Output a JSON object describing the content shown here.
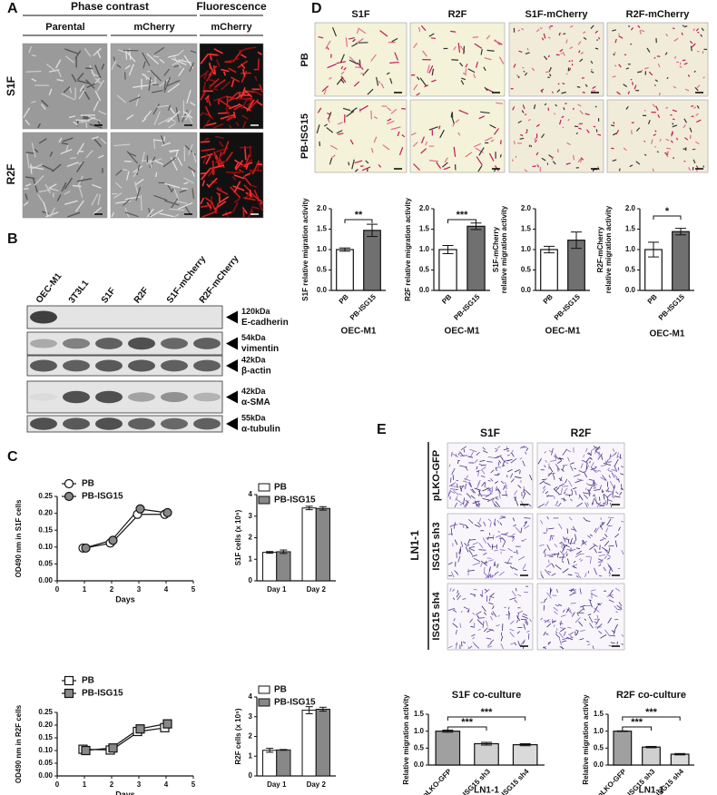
{
  "panel_a": {
    "label": "A",
    "headers": [
      "Phase contrast",
      "Fluorescence"
    ],
    "columns": [
      "Parental",
      "mCherry",
      "mCherry"
    ],
    "rows": [
      "S1F",
      "R2F"
    ]
  },
  "panel_b": {
    "label": "B",
    "lanes": [
      "OEC-M1",
      "3T3L1",
      "S1F",
      "R2F",
      "S1F-mCherry",
      "R2F-mCherry"
    ],
    "bands": [
      {
        "size": "120kDa",
        "name": "E-cadherin"
      },
      {
        "size": "54kDa",
        "name": "vimentin"
      },
      {
        "size": "42kDa",
        "name": "β-actin"
      },
      {
        "size": "42kDa",
        "name": "α-SMA"
      },
      {
        "size": "55kDa",
        "name": "α-tubulin"
      }
    ]
  },
  "panel_c": {
    "label": "C"
  },
  "panel_d": {
    "label": "D",
    "columns": [
      "S1F",
      "R2F",
      "S1F-mCherry",
      "R2F-mCherry"
    ],
    "rows": [
      "PB",
      "PB-ISG15"
    ]
  },
  "panel_e": {
    "label": "E",
    "columns": [
      "S1F",
      "R2F"
    ],
    "rows": [
      "pLKO-GFP",
      "ISG15 sh3",
      "ISG15 sh4"
    ],
    "group": "LN1-1"
  },
  "chart_data": [
    {
      "type": "line",
      "ylabel": "OD490 nm in S1F cells",
      "xlabel": "Days",
      "x": [
        1,
        2,
        3,
        4
      ],
      "xlim": [
        0,
        5
      ],
      "xticks": [
        0,
        1,
        2,
        3,
        4,
        5
      ],
      "ylim": [
        0,
        0.25
      ],
      "yticks": [
        {
          "value": 0,
          "label": "0.00"
        },
        0.05,
        {
          "value": 0.1,
          "label": "0.10"
        },
        0.15,
        {
          "value": 0.2,
          "label": "0.20"
        },
        0.25
      ],
      "series": [
        {
          "name": "PB",
          "marker": "circle",
          "color": "#ffffff",
          "values": [
            0.097,
            0.112,
            0.197,
            0.197
          ],
          "errors": [
            0.002,
            0.003,
            0.004,
            0.004
          ]
        },
        {
          "name": "PB-ISG15",
          "marker": "circle",
          "color": "#888888",
          "values": [
            0.097,
            0.12,
            0.213,
            0.202
          ],
          "errors": [
            0.002,
            0.003,
            0.004,
            0.004
          ]
        }
      ]
    },
    {
      "type": "bar",
      "ylabel": "S1F cells (x 10⁵)",
      "categories": [
        "Day 1",
        "Day 2"
      ],
      "ylim": [
        0,
        4
      ],
      "yticks": [
        0,
        1,
        2,
        3,
        4
      ],
      "series": [
        {
          "name": "PB",
          "color": "#ffffff",
          "values": [
            1.32,
            3.38
          ],
          "errors": [
            0.04,
            0.08
          ]
        },
        {
          "name": "PB-ISG15",
          "color": "#888888",
          "values": [
            1.35,
            3.36
          ],
          "errors": [
            0.08,
            0.08
          ]
        }
      ]
    },
    {
      "type": "line",
      "ylabel": "OD490 nm in R2F cells",
      "xlabel": "Days",
      "x": [
        1,
        2,
        3,
        4
      ],
      "xlim": [
        0,
        5
      ],
      "xticks": [
        0,
        1,
        2,
        3,
        4,
        5
      ],
      "ylim": [
        0,
        0.25
      ],
      "yticks": [
        {
          "value": 0,
          "label": "0.00"
        },
        0.05,
        {
          "value": 0.1,
          "label": "0.10"
        },
        0.15,
        {
          "value": 0.2,
          "label": "0.20"
        },
        0.25
      ],
      "series": [
        {
          "name": "PB",
          "marker": "square",
          "color": "#ffffff",
          "values": [
            0.105,
            0.102,
            0.175,
            0.19
          ],
          "errors": [
            0.008,
            0.01,
            0.01,
            0.01
          ]
        },
        {
          "name": "PB-ISG15",
          "marker": "square",
          "color": "#888888",
          "values": [
            0.1,
            0.11,
            0.185,
            0.205
          ],
          "errors": [
            0.005,
            0.01,
            0.01,
            0.008
          ]
        }
      ]
    },
    {
      "type": "bar",
      "ylabel": "R2F cells (x 10⁵)",
      "categories": [
        "Day 1",
        "Day 2"
      ],
      "ylim": [
        0,
        4
      ],
      "yticks": [
        0,
        1,
        2,
        3,
        4
      ],
      "series": [
        {
          "name": "PB",
          "color": "#ffffff",
          "values": [
            1.3,
            3.33
          ],
          "errors": [
            0.1,
            0.18
          ]
        },
        {
          "name": "PB-ISG15",
          "color": "#888888",
          "values": [
            1.32,
            3.38
          ],
          "errors": [
            0.02,
            0.1
          ]
        }
      ]
    },
    {
      "type": "bar",
      "ylabel": "S1F relative migration activity",
      "xlabel": "OEC-M1",
      "categories": [
        "PB",
        "PB-ISG15"
      ],
      "colors": [
        "#ffffff",
        "#707070"
      ],
      "values": [
        1.0,
        1.47
      ],
      "errors": [
        0.04,
        0.15
      ],
      "ylim": [
        0,
        2
      ],
      "yticks": [
        {
          "value": 0,
          "label": "0.0"
        },
        0.5,
        {
          "value": 1,
          "label": "1.0"
        },
        1.5,
        {
          "value": 2,
          "label": "2.0"
        }
      ],
      "annotations": [
        "**"
      ]
    },
    {
      "type": "bar",
      "ylabel": "R2F relative migration activity",
      "xlabel": "OEC-M1",
      "categories": [
        "PB",
        "PB-ISG15"
      ],
      "colors": [
        "#ffffff",
        "#707070"
      ],
      "values": [
        1.0,
        1.57
      ],
      "errors": [
        0.1,
        0.08
      ],
      "ylim": [
        0,
        2
      ],
      "yticks": [
        {
          "value": 0,
          "label": "0.0"
        },
        0.5,
        {
          "value": 1,
          "label": "1.0"
        },
        1.5,
        {
          "value": 2,
          "label": "2.0"
        }
      ],
      "annotations": [
        "***"
      ]
    },
    {
      "type": "bar",
      "ylabel": [
        "S1F-mCherry",
        "relative migration activity"
      ],
      "xlabel": "OEC-M1",
      "categories": [
        "PB",
        "PB-ISG15"
      ],
      "colors": [
        "#ffffff",
        "#707070"
      ],
      "values": [
        1.0,
        1.23
      ],
      "errors": [
        0.08,
        0.2
      ],
      "ylim": [
        0,
        2
      ],
      "yticks": [
        {
          "value": 0,
          "label": "0.0"
        },
        0.5,
        {
          "value": 1,
          "label": "1.0"
        },
        1.5,
        {
          "value": 2,
          "label": "2.0"
        }
      ]
    },
    {
      "type": "bar",
      "ylabel": [
        "R2F-mCherry",
        "relative migration activity"
      ],
      "xlabel": "OEC-M1",
      "categories": [
        "PB",
        "PB-ISG15"
      ],
      "colors": [
        "#ffffff",
        "#707070"
      ],
      "values": [
        1.0,
        1.44
      ],
      "errors": [
        0.18,
        0.08
      ],
      "ylim": [
        0,
        2
      ],
      "yticks": [
        {
          "value": 0,
          "label": "0.0"
        },
        0.5,
        {
          "value": 1,
          "label": "1.0"
        },
        1.5,
        {
          "value": 2,
          "label": "2.0"
        }
      ],
      "annotations": [
        "*"
      ]
    },
    {
      "type": "bar",
      "title": "S1F co-culture",
      "ylabel": "Relative migration activity",
      "xlabel": "LN1-1",
      "categories": [
        "pLKO-GFP",
        "ISG15 sh3",
        "ISG15 sh4"
      ],
      "colors": [
        "#a0a0a0",
        "#d0d0d0",
        "#dadada"
      ],
      "values": [
        1.0,
        0.63,
        0.6
      ],
      "errors": [
        0.03,
        0.04,
        0.03
      ],
      "ylim": [
        0,
        1.5
      ],
      "yticks": [
        {
          "value": 0,
          "label": "0.0"
        },
        0.5,
        {
          "value": 1,
          "label": "1.0"
        },
        1.5
      ],
      "annotations": [
        "***",
        "***"
      ]
    },
    {
      "type": "bar",
      "title": "R2F co-culture",
      "ylabel": "Relative migration activity",
      "xlabel": "LN1-1",
      "categories": [
        "pLKO-GFP",
        "ISG15 sh3",
        "ISG15 sh4"
      ],
      "colors": [
        "#a0a0a0",
        "#d0d0d0",
        "#dadada"
      ],
      "values": [
        1.0,
        0.53,
        0.32
      ],
      "errors": [
        0.01,
        0.02,
        0.02
      ],
      "ylim": [
        0,
        1.5
      ],
      "yticks": [
        {
          "value": 0,
          "label": "0.0"
        },
        0.5,
        {
          "value": 1,
          "label": "1.0"
        },
        1.5
      ],
      "annotations": [
        "***",
        "***"
      ]
    }
  ]
}
